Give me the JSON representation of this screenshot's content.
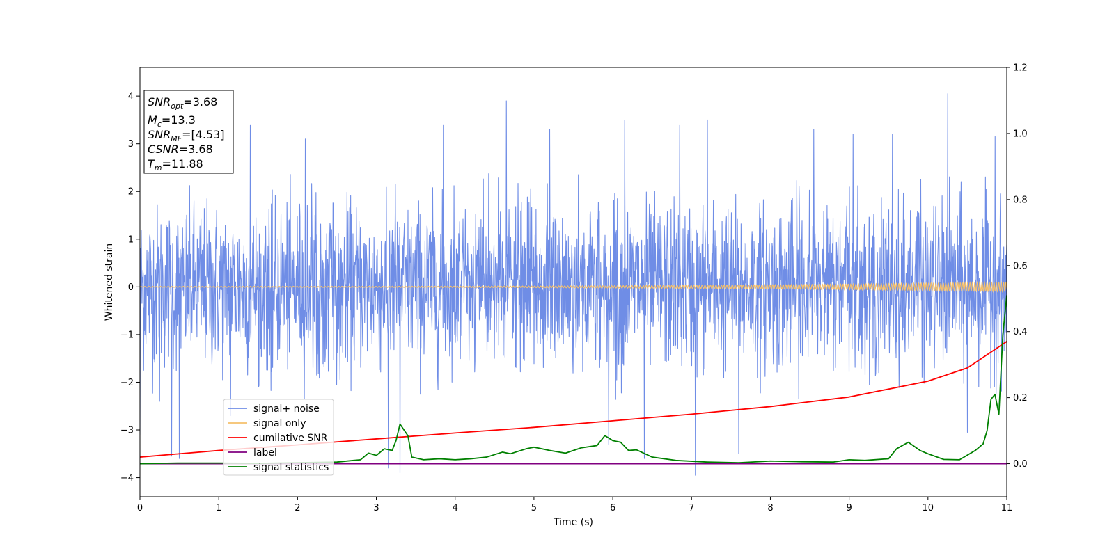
{
  "chart_data": {
    "type": "line",
    "xlabel": "Time (s)",
    "ylabel": "Whitened strain",
    "xlim": [
      0,
      11
    ],
    "ylim_left": [
      -4.4,
      4.6
    ],
    "ylim_right": [
      -0.1,
      1.2
    ],
    "x_ticks": [
      "0",
      "1",
      "2",
      "3",
      "4",
      "5",
      "6",
      "7",
      "8",
      "9",
      "10",
      "11"
    ],
    "y_ticks_left": [
      "−4",
      "−3",
      "−2",
      "−1",
      "0",
      "1",
      "2",
      "3",
      "4"
    ],
    "y_ticks_right": [
      "0.0",
      "0.2",
      "0.4",
      "0.6",
      "0.8",
      "1.0",
      "1.2"
    ],
    "legend_position": "lower-left",
    "series": [
      {
        "name": "signal+ noise",
        "color": "#6f8de6",
        "axis": "left",
        "kind": "noise",
        "typical_range": [
          -1.8,
          2.0
        ],
        "spikes": [
          {
            "x": 0.0,
            "y": -3.1
          },
          {
            "x": 0.25,
            "y": -2.4
          },
          {
            "x": 0.4,
            "y": -3.55
          },
          {
            "x": 0.5,
            "y": -3.6
          },
          {
            "x": 1.15,
            "y": -2.7
          },
          {
            "x": 1.4,
            "y": 3.4
          },
          {
            "x": 2.1,
            "y": 3.1
          },
          {
            "x": 3.15,
            "y": -3.8
          },
          {
            "x": 3.3,
            "y": -3.9
          },
          {
            "x": 3.85,
            "y": 3.4
          },
          {
            "x": 4.65,
            "y": 3.9
          },
          {
            "x": 5.2,
            "y": 3.3
          },
          {
            "x": 5.95,
            "y": -3.3
          },
          {
            "x": 6.15,
            "y": 3.5
          },
          {
            "x": 6.4,
            "y": -3.6
          },
          {
            "x": 6.85,
            "y": 3.4
          },
          {
            "x": 7.05,
            "y": -3.95
          },
          {
            "x": 7.2,
            "y": 3.5
          },
          {
            "x": 7.6,
            "y": -3.5
          },
          {
            "x": 8.55,
            "y": 3.3
          },
          {
            "x": 9.05,
            "y": 3.2
          },
          {
            "x": 9.55,
            "y": 3.2
          },
          {
            "x": 10.25,
            "y": 4.05
          },
          {
            "x": 10.5,
            "y": -3.05
          },
          {
            "x": 10.85,
            "y": 3.15
          }
        ]
      },
      {
        "name": "signal only",
        "color": "#f5c06b",
        "axis": "left",
        "kind": "chirp",
        "amplitude_start": 0.01,
        "amplitude_end": 0.1
      },
      {
        "name": "cumilative SNR",
        "color": "#ff0000",
        "axis": "right",
        "kind": "curve",
        "x": [
          0,
          1,
          2,
          3,
          4,
          5,
          6,
          7,
          8,
          9,
          10,
          10.5,
          11
        ],
        "y": [
          0.02,
          0.04,
          0.057,
          0.075,
          0.093,
          0.11,
          0.13,
          0.15,
          0.173,
          0.202,
          0.25,
          0.29,
          0.37
        ]
      },
      {
        "name": "label",
        "color": "#800080",
        "axis": "right",
        "kind": "flat",
        "x": [
          0,
          11
        ],
        "y": [
          0,
          0
        ]
      },
      {
        "name": "signal statistics",
        "color": "#008000",
        "axis": "right",
        "kind": "curve",
        "x": [
          0,
          0.5,
          1,
          1.5,
          2,
          2.5,
          2.8,
          2.9,
          3.0,
          3.1,
          3.2,
          3.25,
          3.3,
          3.4,
          3.45,
          3.6,
          3.8,
          4.0,
          4.2,
          4.4,
          4.6,
          4.7,
          4.9,
          5.0,
          5.2,
          5.4,
          5.6,
          5.8,
          5.9,
          6.0,
          6.1,
          6.2,
          6.3,
          6.5,
          6.8,
          7.2,
          7.6,
          8.0,
          8.4,
          8.8,
          9.0,
          9.2,
          9.5,
          9.6,
          9.75,
          9.9,
          10.0,
          10.2,
          10.4,
          10.6,
          10.7,
          10.75,
          10.8,
          10.85,
          10.9,
          10.95,
          11.0
        ],
        "y": [
          0.0,
          0.002,
          0.002,
          0.001,
          0.003,
          0.005,
          0.012,
          0.032,
          0.025,
          0.045,
          0.04,
          0.07,
          0.12,
          0.085,
          0.02,
          0.012,
          0.015,
          0.012,
          0.015,
          0.02,
          0.035,
          0.03,
          0.045,
          0.05,
          0.04,
          0.032,
          0.048,
          0.055,
          0.085,
          0.07,
          0.065,
          0.04,
          0.042,
          0.02,
          0.01,
          0.005,
          0.003,
          0.008,
          0.006,
          0.005,
          0.012,
          0.01,
          0.015,
          0.045,
          0.065,
          0.04,
          0.03,
          0.013,
          0.012,
          0.04,
          0.06,
          0.1,
          0.195,
          0.21,
          0.15,
          0.39,
          0.51
        ]
      }
    ],
    "annotation": {
      "lines": [
        {
          "base": "SNR",
          "sub": "opt",
          "value": "=3.68"
        },
        {
          "base": "M",
          "sub": "c",
          "value": "=13.3"
        },
        {
          "base": "SNR",
          "sub": "MF",
          "value": "=[4.53]"
        },
        {
          "base": "CSNR",
          "sub": "",
          "value": "=3.68"
        },
        {
          "base": "T",
          "sub": "m",
          "value": "=11.88"
        }
      ]
    }
  }
}
